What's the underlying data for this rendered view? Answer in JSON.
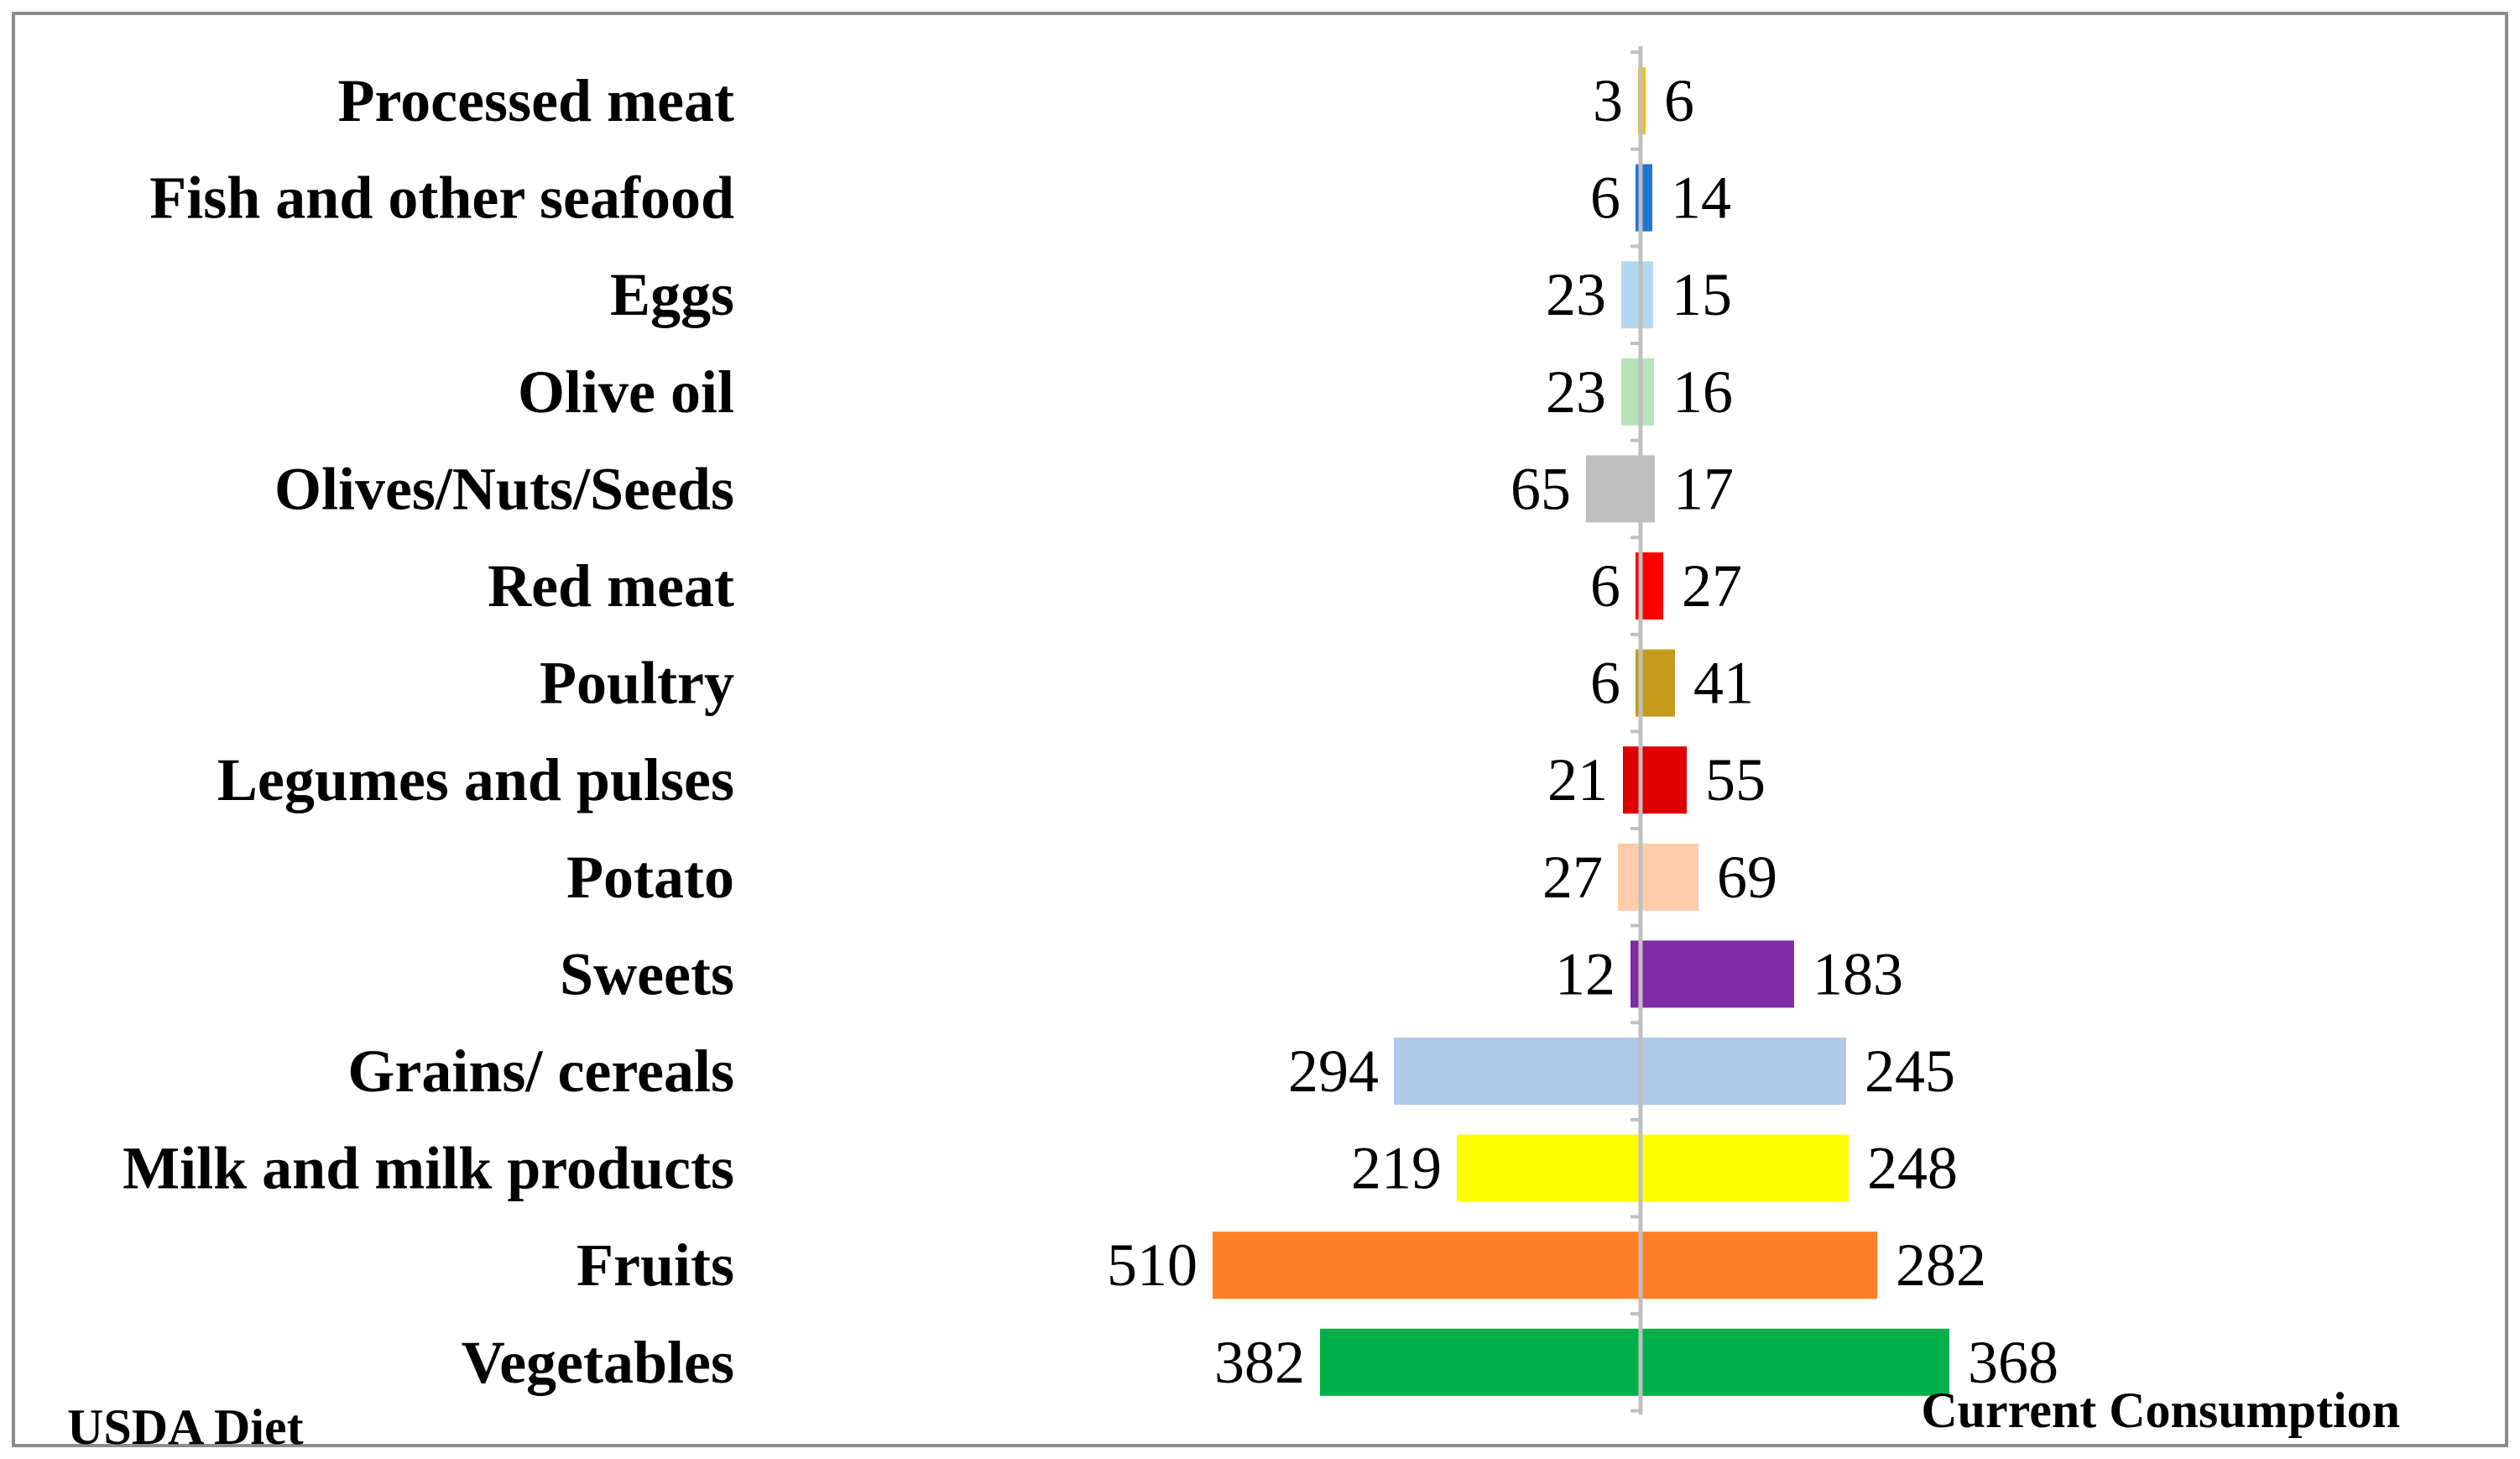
{
  "chart_data": {
    "type": "bar",
    "orientation": "horizontal-diverging",
    "categories": [
      "Processed meat",
      "Fish and other seafood",
      "Eggs",
      "Olive oil",
      "Olives/Nuts/Seeds",
      "Red meat",
      "Poultry",
      "Legumes and pulses",
      "Potato",
      "Sweets",
      "Grains/ cereals",
      "Milk and milk products",
      "Fruits",
      "Vegetables"
    ],
    "series": [
      {
        "name": "USDA Diet",
        "side": "left",
        "values": [
          3,
          6,
          23,
          23,
          65,
          6,
          6,
          21,
          27,
          12,
          294,
          219,
          510,
          382
        ]
      },
      {
        "name": "Current Consumption",
        "side": "right",
        "values": [
          6,
          14,
          15,
          16,
          17,
          27,
          41,
          55,
          69,
          183,
          245,
          248,
          282,
          368
        ]
      }
    ],
    "colors": [
      "#FFC000",
      "#1F77D0",
      "#B4D7F0",
      "#B8E2B8",
      "#BFBFBF",
      "#FF0000",
      "#C49A1A",
      "#E00000",
      "#FFCBAA",
      "#7F2BA5",
      "#AEC8E8",
      "#FFFF00",
      "#FF7F27",
      "#00B04A"
    ],
    "xlim": [
      -520,
      380
    ],
    "title": "",
    "xlabel": "",
    "ylabel": "",
    "grid": false,
    "legend": "bottom-left and bottom-right labels"
  }
}
